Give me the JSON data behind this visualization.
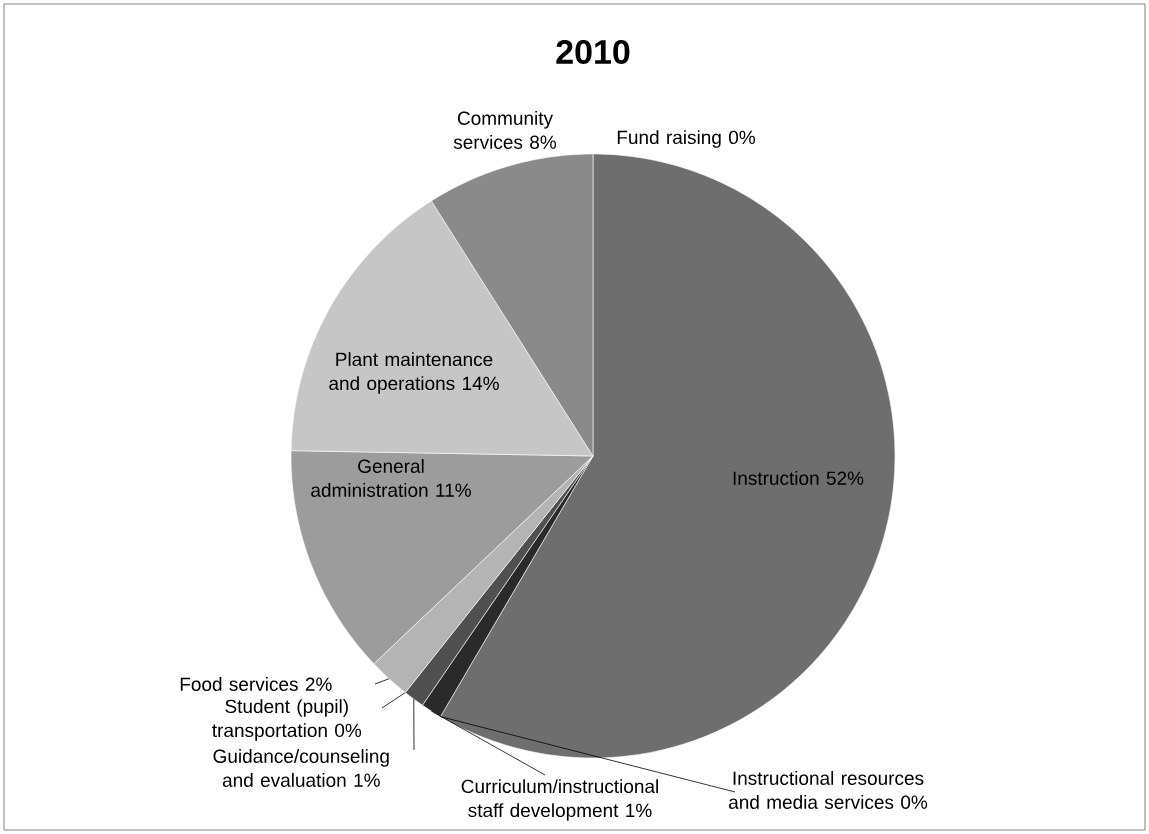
{
  "chart_data": {
    "type": "pie",
    "title": "2010",
    "categories": [
      "Instruction",
      "Instructional resources and media services",
      "Curriculum/instructional staff development",
      "Guidance/counseling and evaluation",
      "Student (pupil) transportation",
      "Food services",
      "General administration",
      "Plant maintenance and operations",
      "Community services",
      "Fund raising"
    ],
    "values": [
      52,
      0,
      1,
      1,
      0,
      2,
      11,
      14,
      8,
      0
    ],
    "value_labels": [
      "52%",
      "0%",
      "1%",
      "1%",
      "0%",
      "2%",
      "11%",
      "14%",
      "8%",
      "0%"
    ],
    "colors": [
      "#6e6e6e",
      "#a8a8a8",
      "#2a2a2a",
      "#505050",
      "#808080",
      "#b4b4b4",
      "#9c9c9c",
      "#c6c6c6",
      "#8a8a8a",
      "#7a7a7a"
    ]
  }
}
